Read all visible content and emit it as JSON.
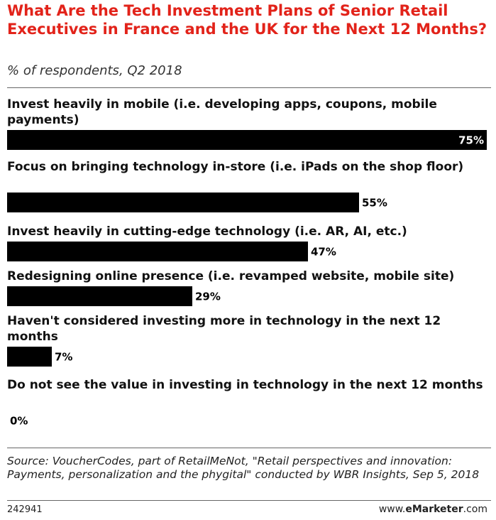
{
  "chart_data": {
    "type": "bar",
    "orientation": "horizontal",
    "title": "What Are the Tech Investment Plans of Senior Retail Executives in France and the UK for the Next 12 Months?",
    "subtitle": "% of respondents, Q2 2018",
    "categories": [
      "Invest heavily in mobile (i.e. developing apps, coupons, mobile payments)",
      "Focus on bringing technology in-store (i.e. iPads on the shop floor)",
      "Invest heavily in cutting-edge technology (i.e. AR, AI, etc.)",
      "Redesigning online presence (i.e. revamped website, mobile site)",
      "Haven't considered investing more in technology in the next 12 months",
      "Do not see the value in investing in technology in the next 12 months"
    ],
    "values": [
      75,
      55,
      47,
      29,
      7,
      0
    ],
    "value_labels": [
      "75%",
      "55%",
      "47%",
      "29%",
      "7%",
      "0%"
    ],
    "xlim": [
      0,
      75
    ],
    "grid": false,
    "legend": "none",
    "colors": {
      "title": "#e2231a",
      "bar": "#000000",
      "value_inside": "#ffffff",
      "value_outside": "#000000"
    }
  },
  "source": "Source: VoucherCodes, part of RetailMeNot, \"Retail perspectives and innovation: Payments, personalization and the phygital\" conducted by WBR Insights, Sep 5, 2018",
  "footer": {
    "chart_id": "242941",
    "brand_prefix": "www.",
    "brand_name": "eMarketer",
    "brand_suffix": ".com"
  }
}
